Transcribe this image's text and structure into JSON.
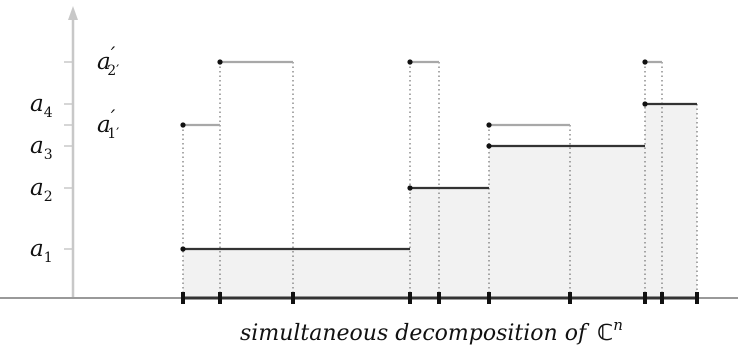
{
  "figure": {
    "caption_text": "simultaneous decomposition of",
    "caption_symbol": "ℂ",
    "caption_exponent": "n"
  },
  "y_labels": [
    {
      "key": "a2p",
      "base": "a",
      "sub": "2′",
      "prime": "′"
    },
    {
      "key": "a4",
      "base": "a",
      "sub": "4"
    },
    {
      "key": "a1p",
      "base": "a",
      "sub": "1′",
      "prime": "′"
    },
    {
      "key": "a3",
      "base": "a",
      "sub": "3"
    },
    {
      "key": "a2",
      "base": "a",
      "sub": "2"
    },
    {
      "key": "a1",
      "base": "a",
      "sub": "1"
    }
  ],
  "colors": {
    "dark_step": "#333333",
    "light_step": "#a8a8a8",
    "fill": "#f2f2f2",
    "axis": "#c8c8c8",
    "baseline": "#999999"
  }
}
